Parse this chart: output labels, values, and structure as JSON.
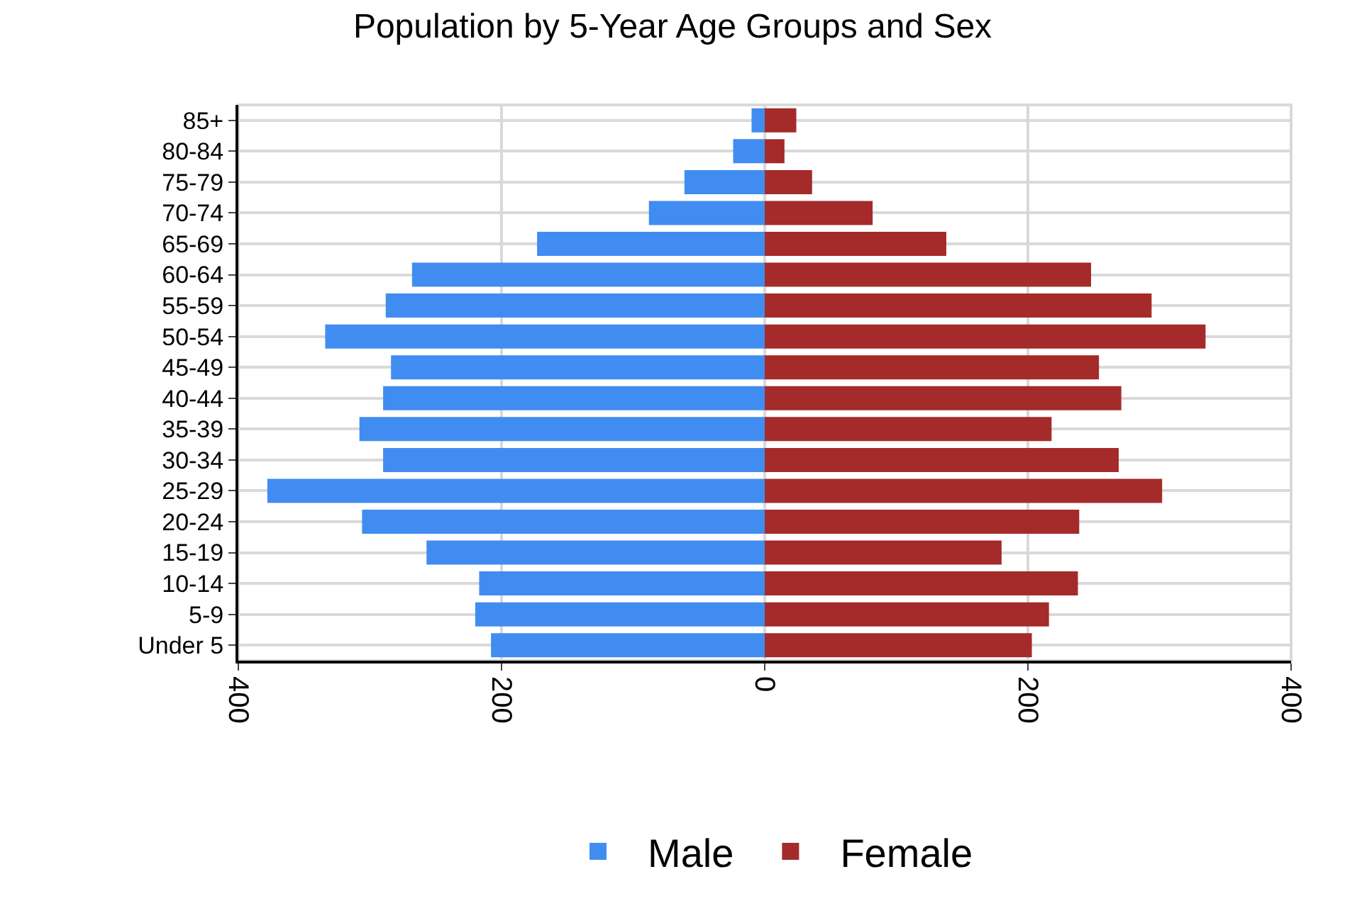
{
  "chart_data": {
    "type": "bar",
    "title": "Population by 5-Year Age Groups and Sex",
    "orientation": "horizontal",
    "stacked": true,
    "categories": [
      "85+",
      "80-84",
      "75-79",
      "70-74",
      "65-69",
      "60-64",
      "55-59",
      "50-54",
      "45-49",
      "40-44",
      "35-39",
      "30-34",
      "25-29",
      "20-24",
      "15-19",
      "10-14",
      "5-9",
      "Under 5"
    ],
    "series": [
      {
        "name": "Male",
        "color": "#418cf0",
        "values": [
          -10,
          -24,
          -61,
          -88,
          -173,
          -268,
          -288,
          -334,
          -284,
          -290,
          -308,
          -290,
          -378,
          -306,
          -257,
          -217,
          -220,
          -208
        ]
      },
      {
        "name": "Female",
        "color": "#a52a2a",
        "values": [
          24,
          15,
          36,
          82,
          138,
          248,
          294,
          335,
          254,
          271,
          218,
          269,
          302,
          239,
          180,
          238,
          216,
          203
        ]
      }
    ],
    "xlim": [
      -400,
      400
    ],
    "xticks": [
      {
        "value": -400,
        "label": "400"
      },
      {
        "value": -200,
        "label": "200"
      },
      0,
      200,
      400
    ],
    "grid": true,
    "legend": "bottom"
  }
}
